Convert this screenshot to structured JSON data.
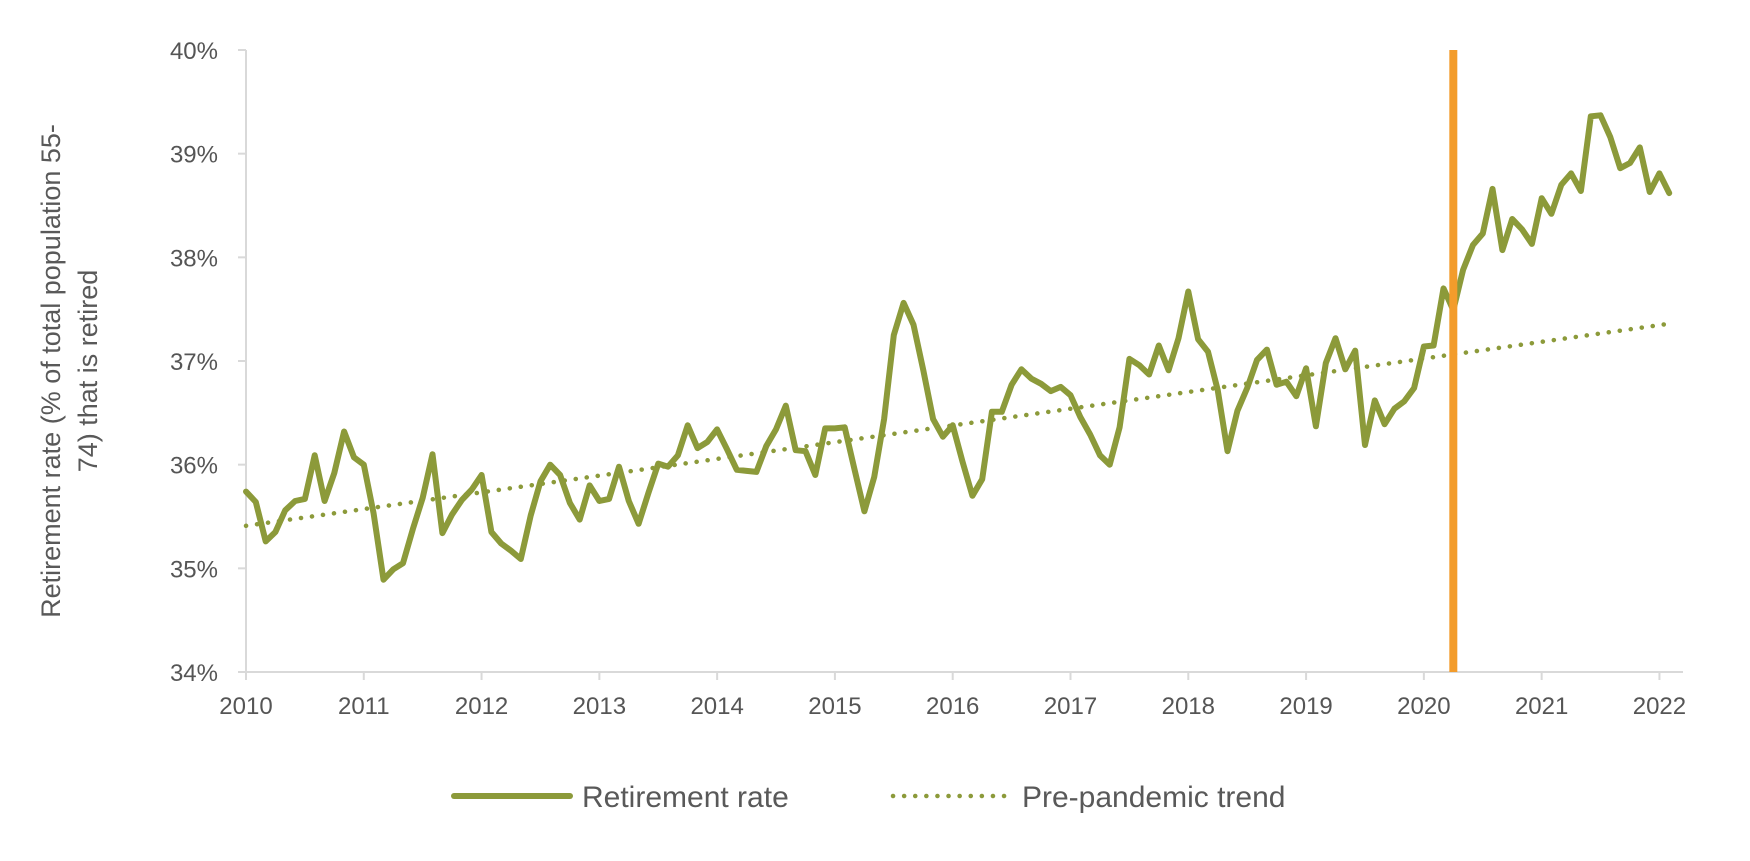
{
  "chart_data": {
    "type": "line",
    "title": "",
    "xlabel": "",
    "ylabel": "Retirement rate (% of total population 55-74) that is retired",
    "ylabel_lines": [
      "Retirement rate (% of total population 55-",
      "74) that is retired"
    ],
    "ylim": [
      34,
      40
    ],
    "xlim": [
      2010,
      2022.2
    ],
    "y_ticks": [
      34,
      35,
      36,
      37,
      38,
      39,
      40
    ],
    "y_tick_labels": [
      "34%",
      "35%",
      "36%",
      "37%",
      "38%",
      "39%",
      "40%"
    ],
    "x_ticks": [
      2010,
      2011,
      2012,
      2013,
      2014,
      2015,
      2016,
      2017,
      2018,
      2019,
      2020,
      2021,
      2022
    ],
    "x_tick_labels": [
      "2010",
      "2011",
      "2012",
      "2013",
      "2014",
      "2015",
      "2016",
      "2017",
      "2018",
      "2019",
      "2020",
      "2021",
      "2022"
    ],
    "grid": false,
    "legend_position": "bottom",
    "series": [
      {
        "name": "Retirement rate",
        "style": "solid",
        "color": "#8C9A3A",
        "x": [
          2010.0,
          2010.083,
          2010.167,
          2010.25,
          2010.333,
          2010.417,
          2010.5,
          2010.583,
          2010.667,
          2010.75,
          2010.833,
          2010.917,
          2011.0,
          2011.083,
          2011.167,
          2011.25,
          2011.333,
          2011.417,
          2011.5,
          2011.583,
          2011.667,
          2011.75,
          2011.833,
          2011.917,
          2012.0,
          2012.083,
          2012.167,
          2012.25,
          2012.333,
          2012.417,
          2012.5,
          2012.583,
          2012.667,
          2012.75,
          2012.833,
          2012.917,
          2013.0,
          2013.083,
          2013.167,
          2013.25,
          2013.333,
          2013.417,
          2013.5,
          2013.583,
          2013.667,
          2013.75,
          2013.833,
          2013.917,
          2014.0,
          2014.083,
          2014.167,
          2014.25,
          2014.333,
          2014.417,
          2014.5,
          2014.583,
          2014.667,
          2014.75,
          2014.833,
          2014.917,
          2015.0,
          2015.083,
          2015.167,
          2015.25,
          2015.333,
          2015.417,
          2015.5,
          2015.583,
          2015.667,
          2015.75,
          2015.833,
          2015.917,
          2016.0,
          2016.083,
          2016.167,
          2016.25,
          2016.333,
          2016.417,
          2016.5,
          2016.583,
          2016.667,
          2016.75,
          2016.833,
          2016.917,
          2017.0,
          2017.083,
          2017.167,
          2017.25,
          2017.333,
          2017.417,
          2017.5,
          2017.583,
          2017.667,
          2017.75,
          2017.833,
          2017.917,
          2018.0,
          2018.083,
          2018.167,
          2018.25,
          2018.333,
          2018.417,
          2018.5,
          2018.583,
          2018.667,
          2018.75,
          2018.833,
          2018.917,
          2019.0,
          2019.083,
          2019.167,
          2019.25,
          2019.333,
          2019.417,
          2019.5,
          2019.583,
          2019.667,
          2019.75,
          2019.833,
          2019.917,
          2020.0,
          2020.083,
          2020.167,
          2020.25,
          2020.333,
          2020.417,
          2020.5,
          2020.583,
          2020.667,
          2020.75,
          2020.833,
          2020.917,
          2021.0,
          2021.083,
          2021.167,
          2021.25,
          2021.333,
          2021.417,
          2021.5,
          2021.583,
          2021.667,
          2021.75,
          2021.833,
          2021.917,
          2022.0,
          2022.083
        ],
        "y": [
          35.74,
          35.64,
          35.26,
          35.35,
          35.56,
          35.65,
          35.67,
          36.09,
          35.65,
          35.92,
          36.32,
          36.07,
          36.0,
          35.53,
          34.89,
          34.99,
          35.05,
          35.38,
          35.68,
          36.1,
          35.34,
          35.52,
          35.66,
          35.76,
          35.9,
          35.35,
          35.24,
          35.17,
          35.09,
          35.51,
          35.84,
          36.0,
          35.9,
          35.63,
          35.47,
          35.8,
          35.65,
          35.67,
          35.98,
          35.65,
          35.43,
          35.73,
          36.01,
          35.98,
          36.09,
          36.38,
          36.16,
          36.22,
          36.34,
          36.15,
          35.95,
          35.94,
          35.93,
          36.18,
          36.34,
          36.57,
          36.14,
          36.13,
          35.9,
          36.35,
          36.35,
          36.36,
          35.95,
          35.55,
          35.88,
          36.44,
          37.25,
          37.56,
          37.35,
          36.91,
          36.44,
          36.27,
          36.38,
          36.03,
          35.7,
          35.86,
          36.51,
          36.51,
          36.77,
          36.92,
          36.83,
          36.78,
          36.71,
          36.75,
          36.67,
          36.46,
          36.29,
          36.09,
          36.0,
          36.36,
          37.02,
          36.96,
          36.87,
          37.15,
          36.91,
          37.22,
          37.67,
          37.21,
          37.09,
          36.72,
          36.13,
          36.52,
          36.74,
          37.01,
          37.11,
          36.77,
          36.8,
          36.66,
          36.93,
          36.37,
          36.98,
          37.22,
          36.92,
          37.1,
          36.19,
          36.62,
          36.39,
          36.54,
          36.61,
          36.74,
          37.14,
          37.15,
          37.7,
          37.49,
          37.88,
          38.12,
          38.23,
          38.66,
          38.07,
          38.37,
          38.27,
          38.13,
          38.57,
          38.42,
          38.7,
          38.81,
          38.64,
          39.36,
          39.37,
          39.16,
          38.86,
          38.91,
          39.06,
          38.63,
          38.81,
          38.62
        ]
      },
      {
        "name": "Pre-pandemic trend",
        "style": "dotted",
        "color": "#8C9A3A",
        "x": [
          2010.0,
          2022.083
        ],
        "y": [
          35.41,
          37.36
        ]
      }
    ],
    "annotations": [
      {
        "type": "vertical-line",
        "x": 2020.25,
        "color": "#F39C2B"
      }
    ]
  }
}
